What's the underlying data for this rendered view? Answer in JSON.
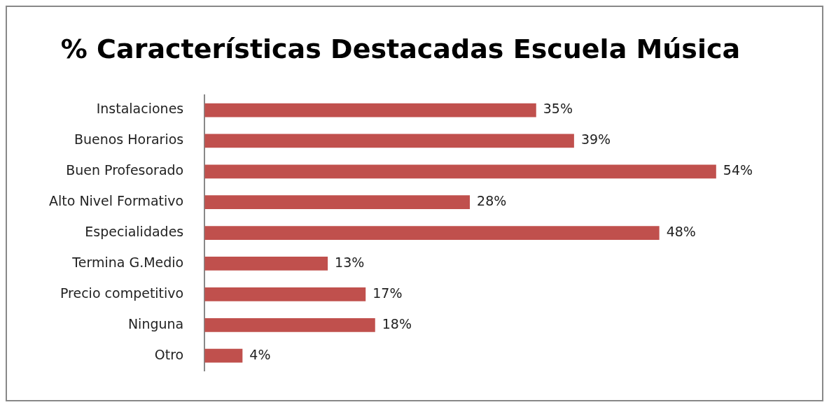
{
  "chart_data": {
    "type": "bar",
    "orientation": "horizontal",
    "title": "% Características Destacadas Escuela Música",
    "categories": [
      "Instalaciones",
      "Buenos Horarios",
      "Buen Profesorado",
      "Alto Nivel Formativo",
      "Especialidades",
      "Termina G.Medio",
      "Precio competitivo",
      "Ninguna",
      "Otro"
    ],
    "values": [
      35,
      39,
      54,
      28,
      48,
      13,
      17,
      18,
      4
    ],
    "value_labels": [
      "35%",
      "39%",
      "54%",
      "28%",
      "48%",
      "13%",
      "17%",
      "18%",
      "4%"
    ],
    "color": "#c0504d"
  }
}
